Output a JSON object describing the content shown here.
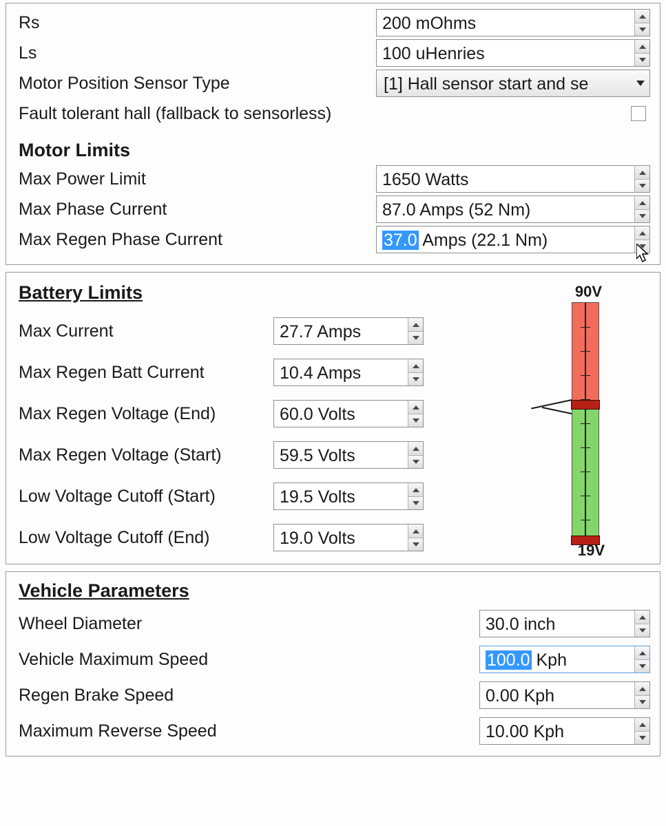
{
  "colors": {
    "panel_border": "#9a9a9a",
    "control_border": "#8f8f8f",
    "selection_bg": "#3498ff",
    "gauge_green": "#84d66a",
    "gauge_red_zone": "#f26d5b",
    "gauge_marker": "#b72015",
    "gauge_line": "#1a1a1a"
  },
  "motor": {
    "rs_label": "Rs",
    "rs_value": "200 mOhms",
    "ls_label": "Ls",
    "ls_value": "100 uHenries",
    "sensor_label": "Motor Position Sensor Type",
    "sensor_value": "[1] Hall sensor start and se",
    "fault_label": "Fault tolerant hall (fallback to sensorless)",
    "fault_checked": false
  },
  "motor_limits": {
    "title": "Motor Limits",
    "max_power_label": "Max Power Limit",
    "max_power_value": "1650 Watts",
    "max_phase_label": "Max Phase Current",
    "max_phase_value": "87.0 Amps  (52 Nm)",
    "max_regen_label": "Max Regen Phase Current",
    "max_regen_sel": "37.0",
    "max_regen_rest": " Amps  (22.1 Nm)"
  },
  "battery": {
    "title": "Battery Limits",
    "max_current_label": "Max Current",
    "max_current_value": "27.7 Amps",
    "max_regen_batt_label": "Max Regen Batt Current",
    "max_regen_batt_value": "10.4 Amps",
    "max_regen_v_end_label": "Max Regen Voltage (End)",
    "max_regen_v_end_value": "60.0 Volts",
    "max_regen_v_start_label": "Max Regen Voltage (Start)",
    "max_regen_v_start_value": "59.5 Volts",
    "low_v_cut_start_label": "Low Voltage Cutoff (Start)",
    "low_v_cut_start_value": "19.5 Volts",
    "low_v_cut_end_label": "Low Voltage Cutoff (End)",
    "low_v_cut_end_value": "19.0 Volts",
    "gauge": {
      "top_label": "90V",
      "bottom_label": "19V",
      "v_min": 19,
      "v_max": 90,
      "regen_end": 60.0,
      "regen_start": 59.5,
      "low_cut_start": 19.5,
      "low_cut_end": 19.0,
      "red_zone_from_top_until_v": 60.0
    }
  },
  "vehicle": {
    "title": "Vehicle Parameters",
    "wheel_dia_label": "Wheel Diameter",
    "wheel_dia_value": "30.0 inch",
    "max_speed_label": "Vehicle Maximum Speed",
    "max_speed_sel": "100.0",
    "max_speed_rest": " Kph",
    "regen_brake_label": "Regen Brake Speed",
    "regen_brake_value": "0.00 Kph",
    "max_reverse_label": "Maximum Reverse Speed",
    "max_reverse_value": "10.00 Kph"
  }
}
